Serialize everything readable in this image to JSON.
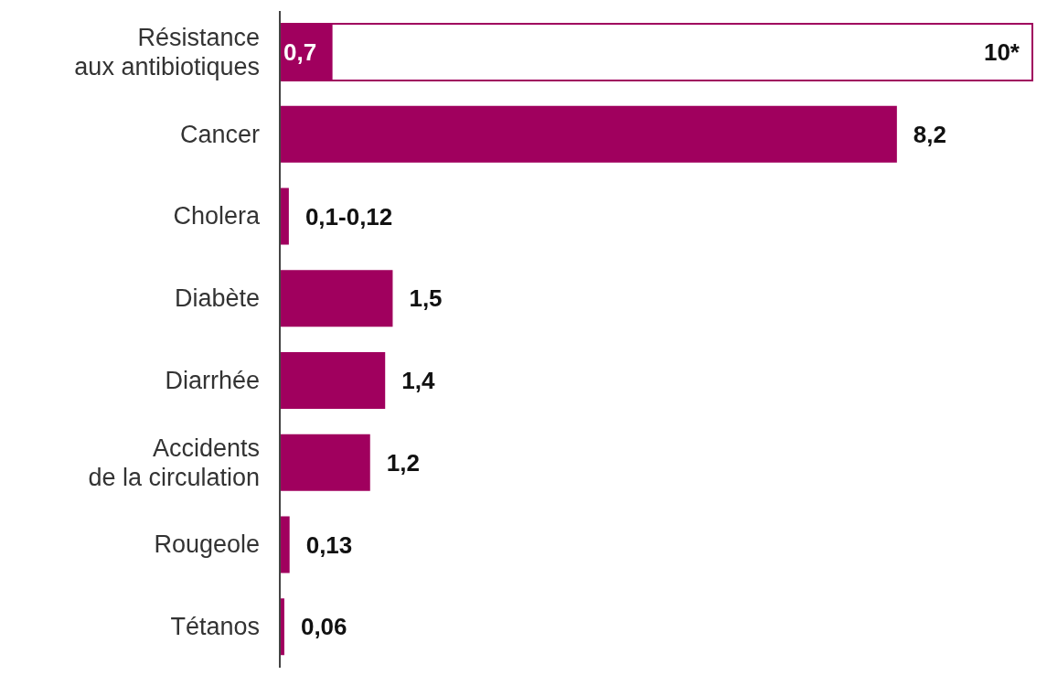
{
  "chart_data": {
    "type": "bar",
    "orientation": "horizontal",
    "categories": [
      "Résistance\naux antibiotiques",
      "Cancer",
      "Cholera",
      "Diabète",
      "Diarrhée",
      "Accidents\nde la circulation",
      "Rougeole",
      "Tétanos"
    ],
    "series": [
      {
        "color": "#a0005e",
        "values": [
          0.7,
          8.2,
          0.12,
          1.5,
          1.4,
          1.2,
          0.13,
          0.06
        ],
        "value_labels": [
          "0,7",
          "8,2",
          "0,1-0,12",
          "1,5",
          "1,4",
          "1,2",
          "0,13",
          "0,06"
        ]
      },
      {
        "color": "#ffffff",
        "values": [
          10,
          null,
          null,
          null,
          null,
          null,
          null,
          null
        ],
        "value_labels": [
          "10*",
          null,
          null,
          null,
          null,
          null,
          null,
          null
        ]
      }
    ],
    "grid": false,
    "legend": false
  }
}
